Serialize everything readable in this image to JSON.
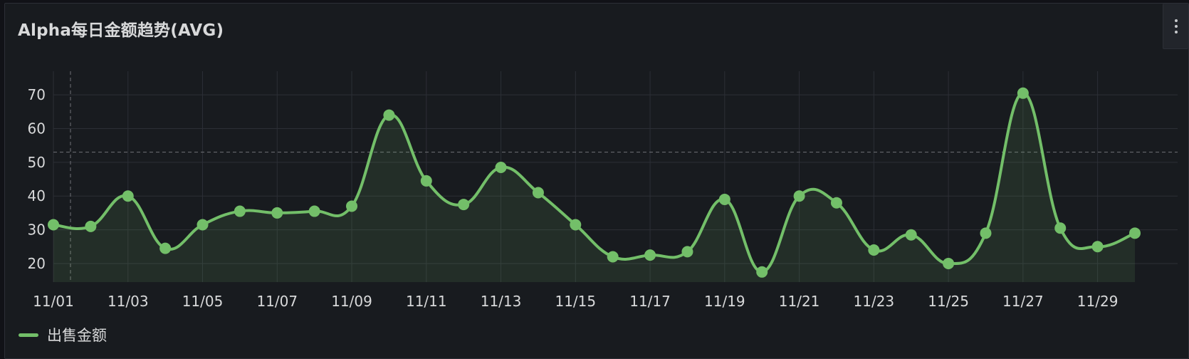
{
  "panel": {
    "title": "Alpha每日金额趋势(AVG)",
    "menu_icon": "more-vertical-icon"
  },
  "colors": {
    "series": "#73bf69",
    "fill": "rgba(115,191,105,0.12)",
    "grid": "#2c2f36",
    "text": "#d8d9da",
    "reference": "#707277"
  },
  "chart_data": {
    "type": "line",
    "smooth": true,
    "x": [
      "11/01",
      "11/02",
      "11/03",
      "11/04",
      "11/05",
      "11/06",
      "11/07",
      "11/08",
      "11/09",
      "11/10",
      "11/11",
      "11/12",
      "11/13",
      "11/14",
      "11/15",
      "11/16",
      "11/17",
      "11/18",
      "11/19",
      "11/20",
      "11/21",
      "11/22",
      "11/23",
      "11/24",
      "11/25",
      "11/26",
      "11/27",
      "11/28",
      "11/29",
      "11/30"
    ],
    "xtick_labels": [
      "11/01",
      "11/03",
      "11/05",
      "11/07",
      "11/09",
      "11/11",
      "11/13",
      "11/15",
      "11/17",
      "11/19",
      "11/21",
      "11/23",
      "11/25",
      "11/27",
      "11/29"
    ],
    "series": [
      {
        "name": "出售金额",
        "values": [
          31.5,
          31,
          40,
          24.5,
          31.5,
          35.5,
          35,
          35.5,
          37,
          64,
          44.5,
          37.5,
          48.5,
          41,
          31.5,
          22,
          22.5,
          23.5,
          39,
          17.5,
          40,
          38,
          24,
          28.5,
          20,
          29,
          70.5,
          30.5,
          25,
          29
        ]
      }
    ],
    "yticks": [
      20,
      30,
      40,
      50,
      60,
      70
    ],
    "ylim": [
      14.5,
      77
    ],
    "grid": true,
    "reference_line_y": 53,
    "crosshair_x": "11/01",
    "legend_position": "bottom-left"
  }
}
